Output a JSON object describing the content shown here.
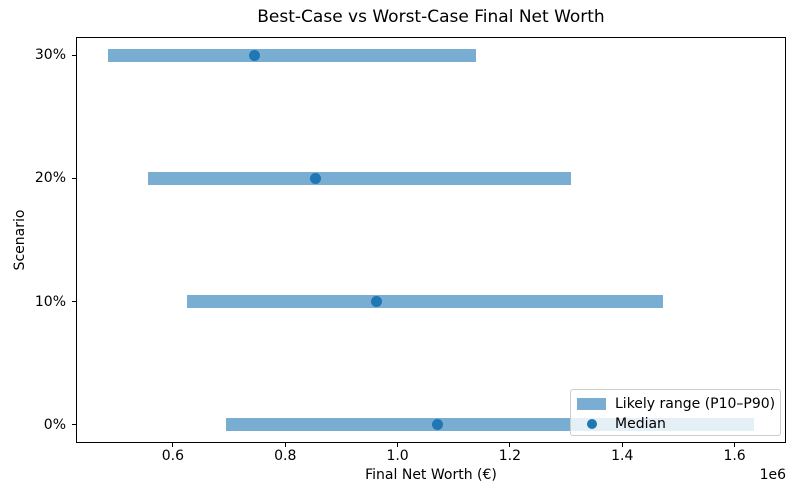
{
  "chart_data": {
    "type": "bar",
    "orientation": "horizontal",
    "title": "Best-Case vs Worst-Case Final Net Worth",
    "xlabel": "Final Net Worth (€)",
    "ylabel": "Scenario",
    "x_offset_label": "1e6",
    "xlim": [
      427500,
      1691500
    ],
    "ylim": [
      -0.15,
      3.15
    ],
    "x_ticks": [
      600000,
      800000,
      1000000,
      1200000,
      1400000,
      1600000
    ],
    "x_tick_labels": [
      "0.6",
      "0.8",
      "1.0",
      "1.2",
      "1.4",
      "1.6"
    ],
    "grid": false,
    "rows": [
      {
        "scenario": "0%",
        "position": 0,
        "p10": 695000,
        "median": 1071000,
        "p90": 1634000
      },
      {
        "scenario": "10%",
        "position": 1,
        "p10": 625000,
        "median": 962000,
        "p90": 1472000
      },
      {
        "scenario": "20%",
        "position": 2,
        "p10": 555000,
        "median": 853000,
        "p90": 1308000
      },
      {
        "scenario": "30%",
        "position": 3,
        "p10": 485000,
        "median": 745000,
        "p90": 1140000
      }
    ],
    "legend": {
      "position": "lower right",
      "entries": [
        "Likely range (P10–P90)",
        "Median"
      ]
    },
    "colors": {
      "bar": "#1f77b4",
      "bar_alpha": 0.6,
      "median_dot": "#1f77b4"
    }
  }
}
